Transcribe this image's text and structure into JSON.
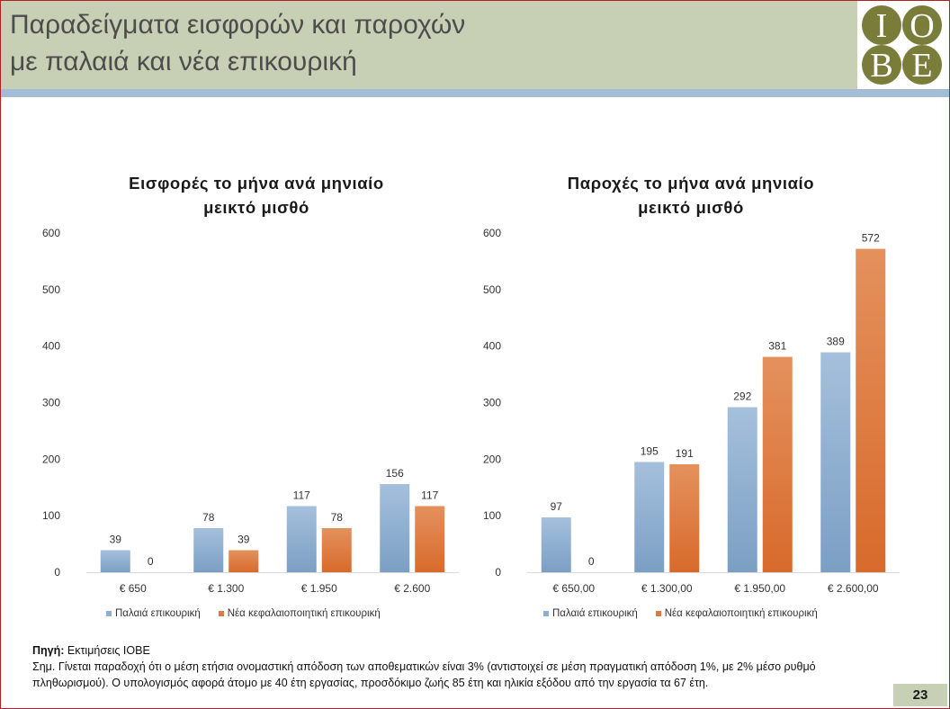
{
  "slide": {
    "title_line1": "Παραδείγματα εισφορών και παροχών",
    "title_line2": "με παλαιά και νέα επικουρική",
    "logo_letters": [
      "I",
      "O",
      "B",
      "E"
    ],
    "page_number": "23",
    "source_label": "Πηγή:",
    "source_text": " Εκτιμήσεις ΙΟΒΕ",
    "note_text": "Σημ. Γίνεται παραδοχή ότι ο μέση ετήσια ονομαστική απόδοση των αποθεματικών είναι 3% (αντιστοιχεί σε μέση πραγματική απόδοση 1%, με 2% μέσο ρυθμό πληθωρισμού). Ο υπολογισμός αφορά άτομο με 40 έτη εργασίας, προσδόκιμο ζωής 85 έτη και ηλικία εξόδου από την εργασία τα 67 έτη."
  },
  "colors": {
    "header_bg": "#c7cfb4",
    "band": "#a3bdd6",
    "logo_green": "#7a7d3a",
    "series_old": "#8eafd0",
    "series_new": "#e07a3f"
  },
  "chart_data": [
    {
      "type": "bar",
      "title_line1": "Εισφορές το μήνα ανά μηνιαίο",
      "title_line2": "μεικτό μισθό",
      "categories": [
        "€ 650",
        "€ 1.300",
        "€ 1.950",
        "€ 2.600"
      ],
      "series": [
        {
          "name": "Παλαιά επικουρική",
          "values": [
            39,
            78,
            117,
            156
          ]
        },
        {
          "name": "Νέα κεφαλαιοποιητική επικουρική",
          "values": [
            0,
            39,
            78,
            117
          ]
        }
      ],
      "ylim": [
        0,
        600
      ],
      "yticks": [
        0,
        100,
        200,
        300,
        400,
        500,
        600
      ],
      "legend": "bottom",
      "grid": false
    },
    {
      "type": "bar",
      "title_line1": "Παροχές το μήνα ανά μηνιαίο",
      "title_line2": "μεικτό μισθό",
      "categories": [
        "€ 650,00",
        "€ 1.300,00",
        "€ 1.950,00",
        "€ 2.600,00"
      ],
      "series": [
        {
          "name": "Παλαιά επικουρική",
          "values": [
            97,
            195,
            292,
            389
          ]
        },
        {
          "name": "Νέα κεφαλαιοποιητική επικουρική",
          "values": [
            0,
            191,
            381,
            572
          ]
        }
      ],
      "ylim": [
        0,
        600
      ],
      "yticks": [
        0,
        100,
        200,
        300,
        400,
        500,
        600
      ],
      "legend": "bottom",
      "grid": false
    }
  ]
}
